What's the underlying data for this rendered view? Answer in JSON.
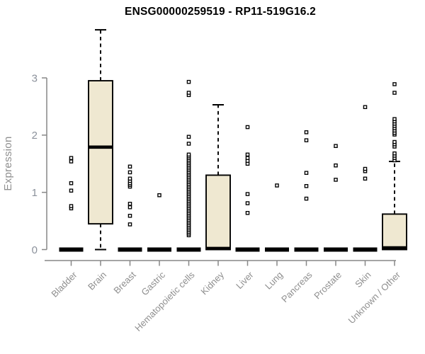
{
  "chart_data": {
    "type": "boxplot",
    "title": "ENSG00000259519 - RP11-519G16.2",
    "ylabel": "Expression",
    "xlabel": "",
    "yticks": [
      0,
      1,
      2,
      3
    ],
    "ylim": [
      0,
      3.9
    ],
    "grid": false,
    "legend": null,
    "categories": [
      "Bladder",
      "Brain",
      "Breast",
      "Gastric",
      "Hematopoietic cells",
      "Kidney",
      "Liver",
      "Lung",
      "Pancreas",
      "Prostate",
      "Skin",
      "Unknown / Other"
    ],
    "boxes": [
      {
        "category": "Bladder",
        "low": 0,
        "q1": 0,
        "median": 0,
        "q3": 0,
        "high": 0,
        "outliers": [
          0.72,
          0.76,
          1.03,
          1.16,
          1.54,
          1.6
        ]
      },
      {
        "category": "Brain",
        "low": 0,
        "q1": 0.45,
        "median": 1.79,
        "q3": 2.95,
        "high": 3.84,
        "outliers": []
      },
      {
        "category": "Breast",
        "low": 0,
        "q1": 0,
        "median": 0,
        "q3": 0,
        "high": 0,
        "outliers": [
          0.44,
          0.59,
          0.74,
          0.8,
          1.1,
          1.13,
          1.16,
          1.2,
          1.24,
          1.35,
          1.45
        ]
      },
      {
        "category": "Gastric",
        "low": 0,
        "q1": 0,
        "median": 0,
        "q3": 0,
        "high": 0,
        "outliers": [
          0.95
        ]
      },
      {
        "category": "Hematopoietic cells",
        "low": 0,
        "q1": 0,
        "median": 0,
        "q3": 0,
        "high": 0,
        "outliers": [
          0.25,
          0.28,
          0.31,
          0.34,
          0.37,
          0.4,
          0.43,
          0.46,
          0.49,
          0.52,
          0.55,
          0.58,
          0.61,
          0.64,
          0.67,
          0.7,
          0.73,
          0.76,
          0.79,
          0.82,
          0.85,
          0.88,
          0.91,
          0.94,
          0.97,
          1.0,
          1.03,
          1.06,
          1.09,
          1.12,
          1.15,
          1.18,
          1.21,
          1.24,
          1.27,
          1.3,
          1.33,
          1.36,
          1.39,
          1.42,
          1.45,
          1.48,
          1.51,
          1.54,
          1.57,
          1.6,
          1.63,
          1.66,
          1.85,
          1.97,
          2.7,
          2.74,
          2.93
        ]
      },
      {
        "category": "Kidney",
        "low": 0,
        "q1": 0,
        "median": 0.02,
        "q3": 1.3,
        "high": 2.53,
        "outliers": []
      },
      {
        "category": "Liver",
        "low": 0,
        "q1": 0,
        "median": 0,
        "q3": 0,
        "high": 0,
        "outliers": [
          0.64,
          0.81,
          0.97,
          1.5,
          1.55,
          1.6,
          1.66,
          2.14
        ]
      },
      {
        "category": "Lung",
        "low": 0,
        "q1": 0,
        "median": 0,
        "q3": 0,
        "high": 0,
        "outliers": [
          1.12
        ]
      },
      {
        "category": "Pancreas",
        "low": 0,
        "q1": 0,
        "median": 0,
        "q3": 0,
        "high": 0,
        "outliers": [
          0.89,
          1.11,
          1.34,
          1.91,
          2.05
        ]
      },
      {
        "category": "Prostate",
        "low": 0,
        "q1": 0,
        "median": 0,
        "q3": 0,
        "high": 0,
        "outliers": [
          1.22,
          1.47,
          1.81
        ]
      },
      {
        "category": "Skin",
        "low": 0,
        "q1": 0,
        "median": 0,
        "q3": 0,
        "high": 0,
        "outliers": [
          1.24,
          1.37,
          1.41,
          2.49
        ]
      },
      {
        "category": "Unknown / Other",
        "low": 0,
        "q1": 0,
        "median": 0.03,
        "q3": 0.62,
        "high": 1.54,
        "outliers": [
          1.56,
          1.6,
          1.64,
          1.68,
          1.8,
          1.84,
          1.88,
          2.01,
          2.04,
          2.08,
          2.12,
          2.16,
          2.2,
          2.24,
          2.28,
          2.74,
          2.89
        ]
      }
    ],
    "colors": {
      "box_fill": "#EFE8D1",
      "box_border": "#000000",
      "median": "#000000",
      "whisker": "#000000",
      "outlier_fill": "#ffffff",
      "outlier_stroke": "#000000",
      "axis": "#878787",
      "tick_label": "#8B919B",
      "category_label": "#8F8F8F",
      "title": "#000000"
    }
  }
}
